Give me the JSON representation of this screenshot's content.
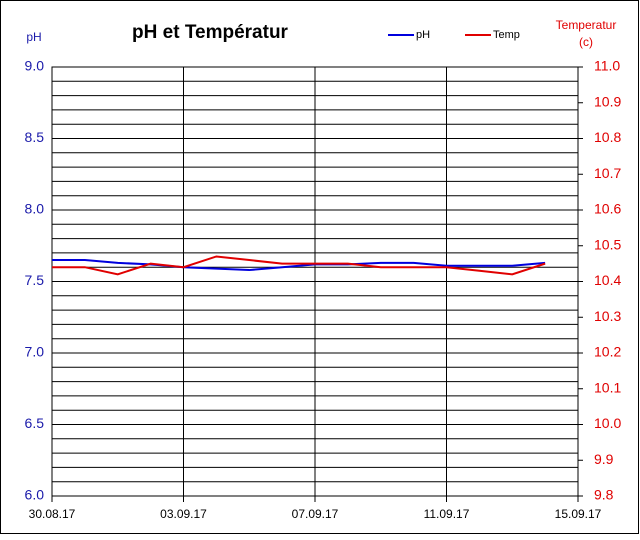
{
  "chart_data": {
    "type": "line",
    "title": "pH et Températur",
    "y_label": "pH",
    "y2_label": [
      "Temperatur",
      "(c)"
    ],
    "x": [
      "2017-08-30",
      "2017-08-31",
      "2017-09-01",
      "2017-09-02",
      "2017-09-03",
      "2017-09-04",
      "2017-09-05",
      "2017-09-06",
      "2017-09-07",
      "2017-09-08",
      "2017-09-09",
      "2017-09-10",
      "2017-09-11",
      "2017-09-12",
      "2017-09-13",
      "2017-09-14"
    ],
    "series": [
      {
        "name": "pH",
        "color": "#0000dd",
        "values": [
          7.65,
          7.65,
          7.63,
          7.62,
          7.6,
          7.59,
          7.58,
          7.6,
          7.62,
          7.62,
          7.63,
          7.63,
          7.61,
          7.61,
          7.61,
          7.63
        ]
      },
      {
        "name": "Temp",
        "color": "#e00000",
        "axis": "y2",
        "values": [
          10.44,
          10.44,
          10.42,
          10.45,
          10.44,
          10.47,
          10.46,
          10.45,
          10.45,
          10.45,
          10.44,
          10.44,
          10.44,
          10.43,
          10.42,
          10.45
        ]
      }
    ],
    "xlim": [
      "2017-08-30",
      "2017-09-15"
    ],
    "xticks": [
      {
        "value": "2017-08-30",
        "label": "30.08.17"
      },
      {
        "value": "2017-09-03",
        "label": "03.09.17"
      },
      {
        "value": "2017-09-07",
        "label": "07.09.17"
      },
      {
        "value": "2017-09-11",
        "label": "11.09.17"
      },
      {
        "value": "2017-09-15",
        "label": "15.09.17"
      }
    ],
    "ylim": [
      6,
      9
    ],
    "yticks": [
      {
        "value": 6,
        "label": "6.0"
      },
      6.5,
      {
        "value": 7,
        "label": "7.0"
      },
      7.5,
      {
        "value": 8,
        "label": "8.0"
      },
      8.5,
      {
        "value": 9,
        "label": "9.0"
      }
    ],
    "ygrid": [
      6.1,
      6.2,
      6.3,
      6.4,
      6.6,
      6.7,
      6.8,
      6.9,
      7.1,
      7.2,
      7.3,
      7.4,
      7.6,
      7.7,
      7.8,
      7.9,
      8.1,
      8.2,
      8.3,
      8.4,
      8.6,
      8.7,
      8.8,
      8.9
    ],
    "y2lim": [
      9.8,
      11
    ],
    "y2ticks": [
      9.8,
      9.9,
      {
        "value": 10,
        "label": "10.0"
      },
      10.1,
      10.2,
      10.3,
      10.4,
      10.5,
      10.6,
      10.7,
      10.8,
      10.9,
      {
        "value": 11,
        "label": "11.0"
      }
    ],
    "grid": true
  }
}
